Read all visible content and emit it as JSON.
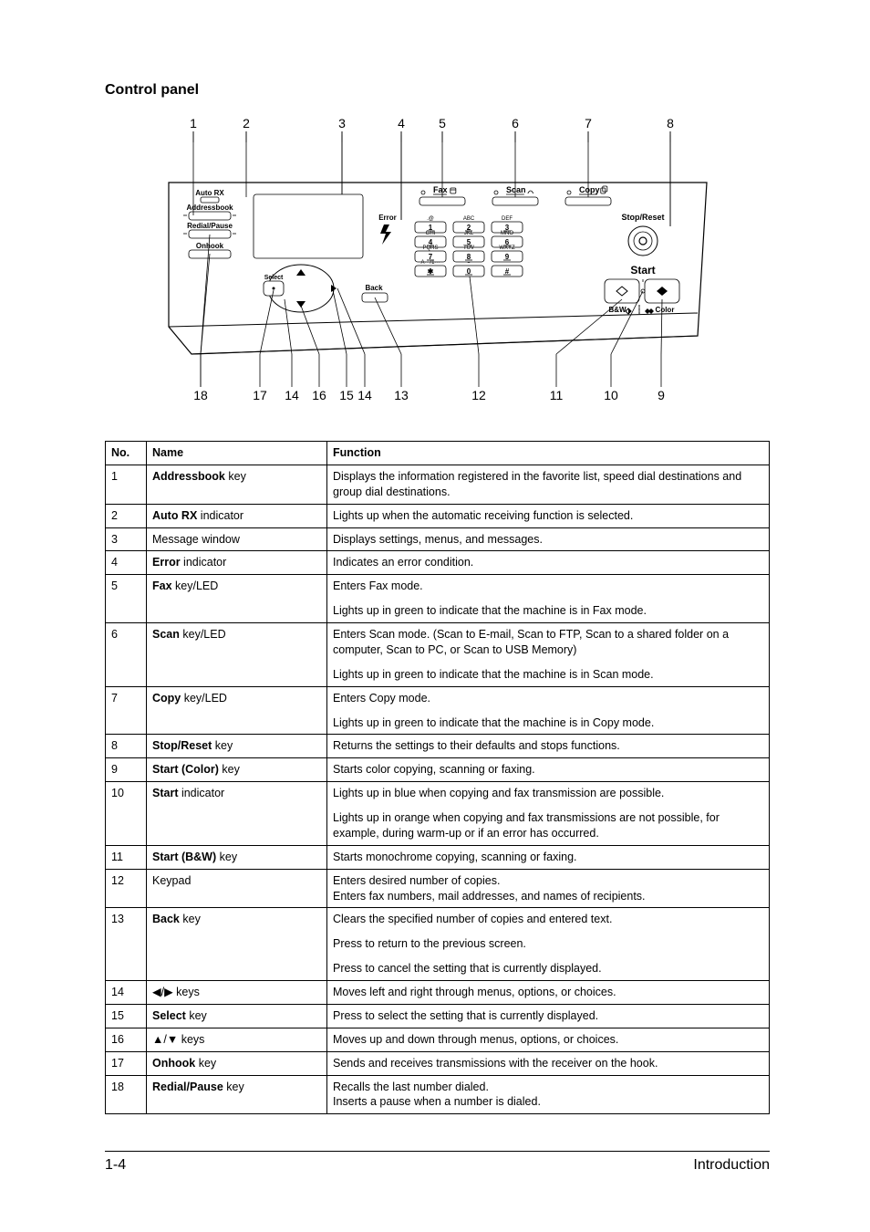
{
  "heading": "Control panel",
  "diagram": {
    "top_numbers": [
      "1",
      "2",
      "3",
      "4",
      "5",
      "6",
      "7",
      "8"
    ],
    "bottom_numbers": [
      "18",
      "17",
      "14",
      "16",
      "15",
      "14",
      "13",
      "12",
      "11",
      "10",
      "9"
    ],
    "panel": {
      "auto_rx_label": "Auto RX",
      "addressbook_label": "Addressbook",
      "redial_pause_label": "Redial/Pause",
      "onhook_label": "Onhook",
      "select_label": "Select",
      "error_label": "Error",
      "back_label": "Back",
      "fax_label": "Fax",
      "scan_label": "Scan",
      "copy_label": "Copy",
      "stop_reset_label": "Stop/Reset",
      "start_label": "Start",
      "bw_label": "B&W",
      "color_label": "Color",
      "keypad": {
        "row1": [
          {
            "top": ".@",
            "num": "1"
          },
          {
            "top": "ABC",
            "num": "2"
          },
          {
            "top": "DEF",
            "num": "3"
          }
        ],
        "row2": [
          {
            "top": "GHI",
            "num": "4"
          },
          {
            "top": "JKL",
            "num": "5"
          },
          {
            "top": "MNO",
            "num": "6"
          }
        ],
        "row3": [
          {
            "top": "PQRS",
            "num": "7"
          },
          {
            "top": "TUV",
            "num": "8"
          },
          {
            "top": "WXYZ",
            "num": "9"
          }
        ],
        "row4_top_left": "A···/1···",
        "row4": [
          "✱",
          "0",
          "#"
        ]
      }
    },
    "colors": {
      "stroke": "#000000",
      "fill": "#ffffff",
      "number_font_size": 14,
      "label_font_size": 8
    }
  },
  "table": {
    "headers": [
      "No.",
      "Name",
      "Function"
    ],
    "rows": [
      {
        "no": "1",
        "name_html": "<span class='bold'>Addressbook</span> key",
        "func": [
          "Displays the information registered in the favorite list, speed dial destinations and group dial destinations."
        ]
      },
      {
        "no": "2",
        "name_html": "<span class='bold'>Auto RX</span> indicator",
        "func": [
          "Lights up when the automatic receiving function is selected."
        ]
      },
      {
        "no": "3",
        "name_html": "Message window",
        "func": [
          "Displays settings, menus, and messages."
        ]
      },
      {
        "no": "4",
        "name_html": "<span class='bold'>Error</span> indicator",
        "func": [
          "Indicates an error condition."
        ]
      },
      {
        "no": "5",
        "name_html": "<span class='bold'>Fax</span> key/LED",
        "func": [
          "Enters Fax mode.",
          "Lights up in green to indicate that the machine is in Fax mode."
        ]
      },
      {
        "no": "6",
        "name_html": "<span class='bold'>Scan</span> key/LED",
        "func": [
          "Enters Scan mode. (Scan to E-mail, Scan to FTP, Scan to a shared folder on a computer, Scan to PC, or Scan to USB Memory)",
          "Lights up in green to indicate that the machine is in Scan mode."
        ]
      },
      {
        "no": "7",
        "name_html": "<span class='bold'>Copy</span> key/LED",
        "func": [
          "Enters Copy mode.",
          "Lights up in green to indicate that the machine is in Copy mode."
        ]
      },
      {
        "no": "8",
        "name_html": "<span class='bold'>Stop/Reset</span> key",
        "func": [
          "Returns the settings to their defaults and stops functions."
        ]
      },
      {
        "no": "9",
        "name_html": "<span class='bold'>Start (Color)</span> key",
        "func": [
          "Starts color copying, scanning or faxing."
        ]
      },
      {
        "no": "10",
        "name_html": "<span class='bold'>Start</span> indicator",
        "func": [
          "Lights up in blue when copying and fax transmission are possible.",
          "Lights up in orange when copying and fax transmissions are not possible, for example, during warm-up or if an error has occurred."
        ]
      },
      {
        "no": "11",
        "name_html": "<span class='bold'>Start (B&W)</span> key",
        "func": [
          "Starts monochrome copying, scanning or faxing."
        ]
      },
      {
        "no": "12",
        "name_html": "Keypad",
        "func": [
          "Enters desired number of copies.\nEnters fax numbers, mail addresses, and names of recipients."
        ]
      },
      {
        "no": "13",
        "name_html": "<span class='bold'>Back</span> key",
        "func": [
          "Clears the specified number of copies and entered text.",
          "Press to return to the previous screen.",
          "Press to cancel the setting that is currently displayed."
        ]
      },
      {
        "no": "14",
        "name_html": "◀/▶ keys",
        "func": [
          "Moves left and right through menus, options, or choices."
        ]
      },
      {
        "no": "15",
        "name_html": "<span class='bold'>Select</span> key",
        "func": [
          "Press to select the setting that is currently displayed."
        ]
      },
      {
        "no": "16",
        "name_html": "▲/▼ keys",
        "func": [
          "Moves up and down through menus, options, or choices."
        ]
      },
      {
        "no": "17",
        "name_html": "<span class='bold'>Onhook</span> key",
        "func": [
          "Sends and receives transmissions with the receiver on the hook."
        ]
      },
      {
        "no": "18",
        "name_html": "<span class='bold'>Redial/Pause</span> key",
        "func": [
          "Recalls the last number dialed.\nInserts a pause when a number is dialed."
        ]
      }
    ]
  },
  "footer": {
    "page_number": "1-4",
    "section": "Introduction"
  }
}
